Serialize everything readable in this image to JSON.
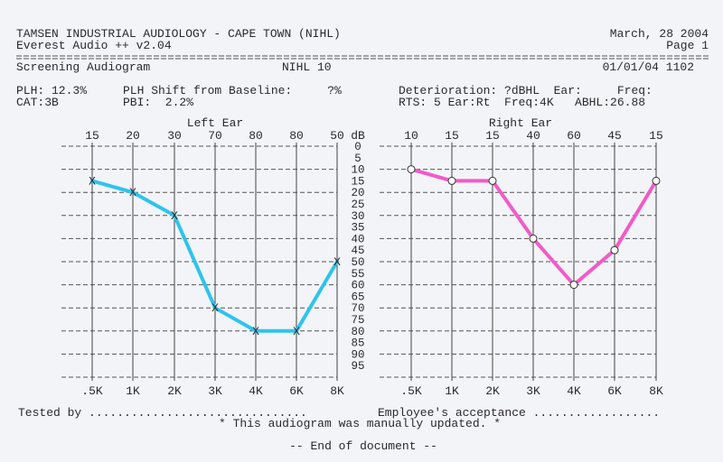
{
  "header": {
    "company": "TAMSEN INDUSTRIAL AUDIOLOGY - CAPE TOWN (NIHL)",
    "software": "Everest Audio ++  v2.04",
    "date": "March, 28  2004",
    "page": "Page   1",
    "report_type": "Screening Audiogram",
    "protocol": "NIHL 10",
    "test_datetime": "01/01/04 1102"
  },
  "summary": {
    "plh": "PLH: 12.3%",
    "plh_shift": "PLH Shift from Baseline:     ?%",
    "deterioration": "Deterioration: ?dBHL  Ear:     Freq:",
    "cat": "CAT:3B",
    "pbi": "PBI:  2.2%",
    "rts": "RTS: 5 Ear:Rt  Freq:4K   ABHL:26.88"
  },
  "chart_data": [
    {
      "type": "line",
      "title": "Left Ear",
      "x": [
        ".5K",
        "1K",
        "2K",
        "3K",
        "4K",
        "6K",
        "8K"
      ],
      "values": [
        15,
        20,
        30,
        70,
        80,
        80,
        50
      ],
      "marker": "X",
      "ylabel": "dB",
      "ylim": [
        0,
        100
      ],
      "y_inverted": true,
      "yticks": [
        0,
        5,
        10,
        15,
        20,
        25,
        30,
        35,
        40,
        45,
        50,
        55,
        60,
        65,
        70,
        75,
        80,
        85,
        90,
        95
      ],
      "line_color": "#2ec4ec",
      "grid": true
    },
    {
      "type": "line",
      "title": "Right Ear",
      "x": [
        ".5K",
        "1K",
        "2K",
        "3K",
        "4K",
        "6K",
        "8K"
      ],
      "values": [
        10,
        15,
        15,
        40,
        60,
        45,
        15
      ],
      "marker": "O",
      "ylim": [
        0,
        100
      ],
      "y_inverted": true,
      "line_color": "#f25bc8",
      "grid": true
    }
  ],
  "footer": {
    "tested_by": "Tested by ...............................",
    "acceptance": "Employee's acceptance ..................",
    "note": "* This audiogram was manually updated. *",
    "end": "-- End of document --"
  }
}
